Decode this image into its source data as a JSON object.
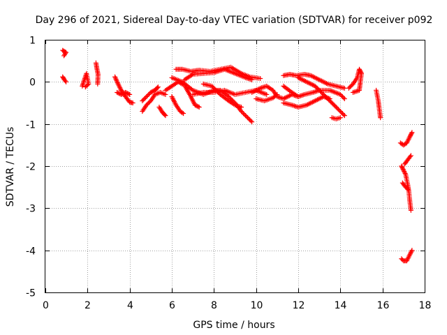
{
  "chart_data": {
    "type": "scatter",
    "title": "Day 296 of 2021, Sidereal Day-to-day VTEC variation (SDTVAR) for receiver p092",
    "xlabel": "GPS time / hours",
    "ylabel": "SDTVAR / TECUs",
    "xlim": [
      0,
      18
    ],
    "ylim": [
      -5,
      1
    ],
    "x_ticks": [
      0,
      2,
      4,
      6,
      8,
      10,
      12,
      14,
      16,
      18
    ],
    "y_ticks": [
      -5,
      -4,
      -3,
      -2,
      -1,
      0,
      1
    ],
    "x_tick_labels": [
      "0",
      "2",
      "4",
      "6",
      "8",
      "10",
      "12",
      "14",
      "16",
      "18"
    ],
    "y_tick_labels": [
      "-5",
      "-4",
      "-3",
      "-2",
      "-1",
      "0",
      "1"
    ],
    "grid": true,
    "marker": "+",
    "series": [
      {
        "name": "SDTVAR",
        "color": "#ff0000",
        "segments": [
          [
            [
              0.82,
              0.75
            ],
            [
              0.9,
              0.72
            ],
            [
              0.98,
              0.7
            ],
            [
              0.88,
              0.62
            ]
          ],
          [
            [
              0.82,
              0.12
            ],
            [
              0.9,
              0.05
            ],
            [
              0.98,
              0.0
            ]
          ],
          [
            [
              1.75,
              -0.1
            ],
            [
              1.85,
              0.05
            ],
            [
              1.95,
              0.2
            ],
            [
              2.05,
              -0.05
            ],
            [
              1.9,
              -0.12
            ]
          ],
          [
            [
              2.4,
              0.45
            ],
            [
              2.45,
              0.3
            ],
            [
              2.5,
              0.18
            ],
            [
              2.48,
              -0.05
            ]
          ],
          [
            [
              3.3,
              0.12
            ],
            [
              3.45,
              -0.05
            ],
            [
              3.6,
              -0.2
            ],
            [
              3.8,
              -0.35
            ],
            [
              4.0,
              -0.48
            ],
            [
              4.15,
              -0.5
            ]
          ],
          [
            [
              3.4,
              -0.25
            ],
            [
              3.6,
              -0.3
            ],
            [
              3.8,
              -0.25
            ],
            [
              4.0,
              -0.3
            ]
          ],
          [
            [
              4.6,
              -0.7
            ],
            [
              4.8,
              -0.55
            ],
            [
              5.0,
              -0.45
            ],
            [
              5.2,
              -0.3
            ],
            [
              5.45,
              -0.25
            ],
            [
              5.7,
              -0.3
            ]
          ],
          [
            [
              4.6,
              -0.45
            ],
            [
              4.8,
              -0.35
            ],
            [
              5.0,
              -0.25
            ],
            [
              5.2,
              -0.2
            ],
            [
              5.35,
              -0.12
            ]
          ],
          [
            [
              5.4,
              -0.6
            ],
            [
              5.55,
              -0.72
            ],
            [
              5.7,
              -0.8
            ]
          ],
          [
            [
              5.7,
              -0.2
            ],
            [
              6.0,
              -0.1
            ],
            [
              6.3,
              0.0
            ],
            [
              6.6,
              -0.08
            ],
            [
              6.85,
              -0.3
            ],
            [
              7.1,
              -0.55
            ],
            [
              7.3,
              -0.6
            ]
          ],
          [
            [
              6.0,
              -0.35
            ],
            [
              6.2,
              -0.55
            ],
            [
              6.4,
              -0.7
            ],
            [
              6.55,
              -0.75
            ]
          ],
          [
            [
              6.6,
              0.05
            ],
            [
              7.0,
              0.18
            ],
            [
              7.5,
              0.2
            ],
            [
              8.0,
              0.22
            ],
            [
              8.5,
              0.3
            ],
            [
              9.0,
              0.2
            ],
            [
              9.5,
              0.1
            ],
            [
              9.8,
              0.05
            ]
          ],
          [
            [
              6.2,
              0.3
            ],
            [
              6.5,
              0.3
            ],
            [
              6.9,
              0.25
            ],
            [
              7.3,
              0.28
            ],
            [
              7.8,
              0.25
            ],
            [
              8.3,
              0.3
            ],
            [
              8.8,
              0.35
            ],
            [
              9.3,
              0.2
            ],
            [
              9.7,
              0.12
            ],
            [
              10.2,
              0.08
            ]
          ],
          [
            [
              6.0,
              0.1
            ],
            [
              6.5,
              0.0
            ],
            [
              7.0,
              -0.2
            ],
            [
              7.5,
              -0.3
            ],
            [
              8.0,
              -0.2
            ],
            [
              8.3,
              -0.2
            ],
            [
              8.7,
              -0.35
            ],
            [
              9.0,
              -0.5
            ],
            [
              9.3,
              -0.7
            ],
            [
              9.6,
              -0.85
            ],
            [
              9.8,
              -0.95
            ]
          ],
          [
            [
              7.0,
              -0.3
            ],
            [
              7.5,
              -0.25
            ],
            [
              8.0,
              -0.25
            ],
            [
              8.5,
              -0.2
            ],
            [
              9.0,
              -0.3
            ],
            [
              9.5,
              -0.25
            ],
            [
              10.0,
              -0.2
            ],
            [
              10.5,
              -0.3
            ]
          ],
          [
            [
              7.5,
              -0.05
            ],
            [
              7.9,
              -0.1
            ],
            [
              8.3,
              -0.3
            ],
            [
              8.7,
              -0.45
            ],
            [
              9.0,
              -0.55
            ],
            [
              9.3,
              -0.6
            ]
          ],
          [
            [
              9.8,
              -0.25
            ],
            [
              10.2,
              -0.15
            ],
            [
              10.5,
              -0.1
            ],
            [
              10.8,
              -0.2
            ],
            [
              11.0,
              -0.35
            ],
            [
              11.3,
              -0.4
            ],
            [
              11.7,
              -0.3
            ],
            [
              12.0,
              -0.35
            ]
          ],
          [
            [
              10.0,
              -0.4
            ],
            [
              10.4,
              -0.45
            ],
            [
              10.8,
              -0.38
            ],
            [
              11.0,
              -0.3
            ]
          ],
          [
            [
              11.3,
              0.15
            ],
            [
              11.6,
              0.18
            ],
            [
              11.9,
              0.15
            ],
            [
              12.3,
              0.18
            ],
            [
              12.6,
              0.15
            ],
            [
              13.0,
              0.05
            ],
            [
              13.4,
              -0.05
            ],
            [
              13.8,
              -0.1
            ],
            [
              14.2,
              -0.15
            ]
          ],
          [
            [
              11.3,
              -0.1
            ],
            [
              11.7,
              -0.25
            ],
            [
              12.0,
              -0.35
            ],
            [
              12.3,
              -0.3
            ],
            [
              12.7,
              -0.25
            ],
            [
              13.0,
              -0.2
            ],
            [
              13.5,
              -0.2
            ],
            [
              14.0,
              -0.3
            ],
            [
              14.2,
              -0.4
            ]
          ],
          [
            [
              11.3,
              -0.5
            ],
            [
              11.7,
              -0.55
            ],
            [
              12.0,
              -0.6
            ],
            [
              12.4,
              -0.55
            ],
            [
              12.8,
              -0.45
            ],
            [
              13.2,
              -0.35
            ],
            [
              13.5,
              -0.4
            ]
          ],
          [
            [
              12.0,
              0.1
            ],
            [
              12.4,
              0.0
            ],
            [
              12.8,
              -0.1
            ],
            [
              13.2,
              -0.3
            ],
            [
              13.6,
              -0.5
            ],
            [
              13.9,
              -0.65
            ],
            [
              14.2,
              -0.8
            ]
          ],
          [
            [
              13.6,
              -0.85
            ],
            [
              13.8,
              -0.88
            ],
            [
              14.0,
              -0.85
            ]
          ],
          [
            [
              14.4,
              -0.15
            ],
            [
              14.6,
              -0.05
            ],
            [
              14.8,
              0.1
            ],
            [
              14.9,
              0.3
            ],
            [
              15.0,
              0.2
            ],
            [
              14.9,
              -0.2
            ],
            [
              14.6,
              -0.25
            ]
          ],
          [
            [
              15.7,
              -0.2
            ],
            [
              15.8,
              -0.45
            ],
            [
              15.85,
              -0.65
            ],
            [
              15.9,
              -0.85
            ]
          ],
          [
            [
              16.85,
              -1.45
            ],
            [
              17.0,
              -1.5
            ],
            [
              17.15,
              -1.45
            ],
            [
              17.3,
              -1.3
            ],
            [
              17.4,
              -1.2
            ]
          ],
          [
            [
              16.9,
              -2.0
            ],
            [
              17.0,
              -2.1
            ],
            [
              17.1,
              -2.2
            ],
            [
              17.2,
              -2.45
            ],
            [
              17.25,
              -2.6
            ],
            [
              17.3,
              -2.85
            ],
            [
              17.35,
              -3.05
            ]
          ],
          [
            [
              16.95,
              -2.4
            ],
            [
              17.1,
              -2.5
            ],
            [
              17.2,
              -2.55
            ]
          ],
          [
            [
              17.05,
              -1.95
            ],
            [
              17.2,
              -1.85
            ],
            [
              17.35,
              -1.75
            ]
          ],
          [
            [
              16.9,
              -4.2
            ],
            [
              17.0,
              -4.25
            ],
            [
              17.15,
              -4.25
            ],
            [
              17.3,
              -4.1
            ],
            [
              17.4,
              -4.0
            ]
          ]
        ]
      }
    ]
  }
}
